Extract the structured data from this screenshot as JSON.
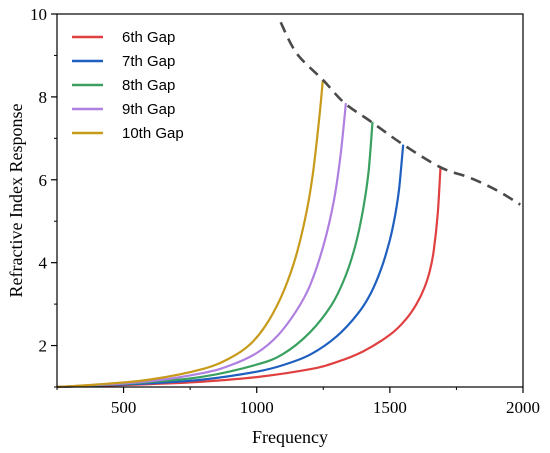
{
  "chart_data": {
    "type": "line",
    "title": "",
    "xlabel": "Frequency",
    "ylabel": "Refractive Index Response",
    "xlim": [
      250,
      2000
    ],
    "ylim": [
      1,
      10
    ],
    "xticks": [
      500,
      1000,
      1500,
      2000
    ],
    "xtick_labels": [
      "500",
      "1000",
      "1500",
      "2000"
    ],
    "yticks": [
      2,
      4,
      6,
      8,
      10
    ],
    "ytick_labels": [
      "2",
      "4",
      "6",
      "8",
      "10"
    ],
    "grid": false,
    "legend_position": "top-left",
    "series": [
      {
        "name": "6th Gap",
        "color": "#e04040",
        "x": [
          250,
          400,
          600,
          800,
          1000,
          1200,
          1300,
          1400,
          1500,
          1560,
          1600,
          1630,
          1650,
          1665,
          1680,
          1690
        ],
        "y": [
          1.0,
          1.03,
          1.07,
          1.13,
          1.24,
          1.43,
          1.6,
          1.86,
          2.26,
          2.63,
          3.0,
          3.4,
          3.8,
          4.3,
          5.2,
          6.3
        ]
      },
      {
        "name": "7th Gap",
        "color": "#1e5fbf",
        "x": [
          250,
          400,
          600,
          800,
          1000,
          1100,
          1200,
          1300,
          1380,
          1430,
          1470,
          1500,
          1520,
          1535,
          1550
        ],
        "y": [
          1.0,
          1.04,
          1.09,
          1.18,
          1.37,
          1.53,
          1.78,
          2.22,
          2.77,
          3.28,
          3.9,
          4.55,
          5.15,
          5.8,
          6.85
        ]
      },
      {
        "name": "8th Gap",
        "color": "#3aa060",
        "x": [
          250,
          400,
          600,
          800,
          1000,
          1100,
          1200,
          1280,
          1330,
          1370,
          1400,
          1420,
          1435
        ],
        "y": [
          1.0,
          1.04,
          1.12,
          1.25,
          1.54,
          1.8,
          2.32,
          2.97,
          3.62,
          4.4,
          5.3,
          6.2,
          7.4
        ]
      },
      {
        "name": "9th Gap",
        "color": "#b080e0",
        "x": [
          250,
          400,
          600,
          800,
          900,
          1000,
          1080,
          1150,
          1200,
          1250,
          1290,
          1315,
          1335
        ],
        "y": [
          1.0,
          1.05,
          1.14,
          1.34,
          1.52,
          1.82,
          2.25,
          2.85,
          3.45,
          4.4,
          5.5,
          6.6,
          7.85
        ]
      },
      {
        "name": "10th Gap",
        "color": "#c79a1a",
        "x": [
          250,
          400,
          600,
          800,
          900,
          970,
          1030,
          1090,
          1140,
          1180,
          1210,
          1235,
          1248
        ],
        "y": [
          1.0,
          1.06,
          1.18,
          1.44,
          1.7,
          2.0,
          2.45,
          3.15,
          4.0,
          5.0,
          6.1,
          7.5,
          8.4
        ]
      }
    ],
    "envelope": {
      "style": "dashed",
      "color": "#4a4a4a",
      "x": [
        1090,
        1150,
        1250,
        1330,
        1430,
        1550,
        1690,
        1800,
        1900,
        1990
      ],
      "y": [
        9.8,
        9.05,
        8.4,
        7.85,
        7.4,
        6.85,
        6.3,
        6.05,
        5.75,
        5.4
      ]
    }
  }
}
